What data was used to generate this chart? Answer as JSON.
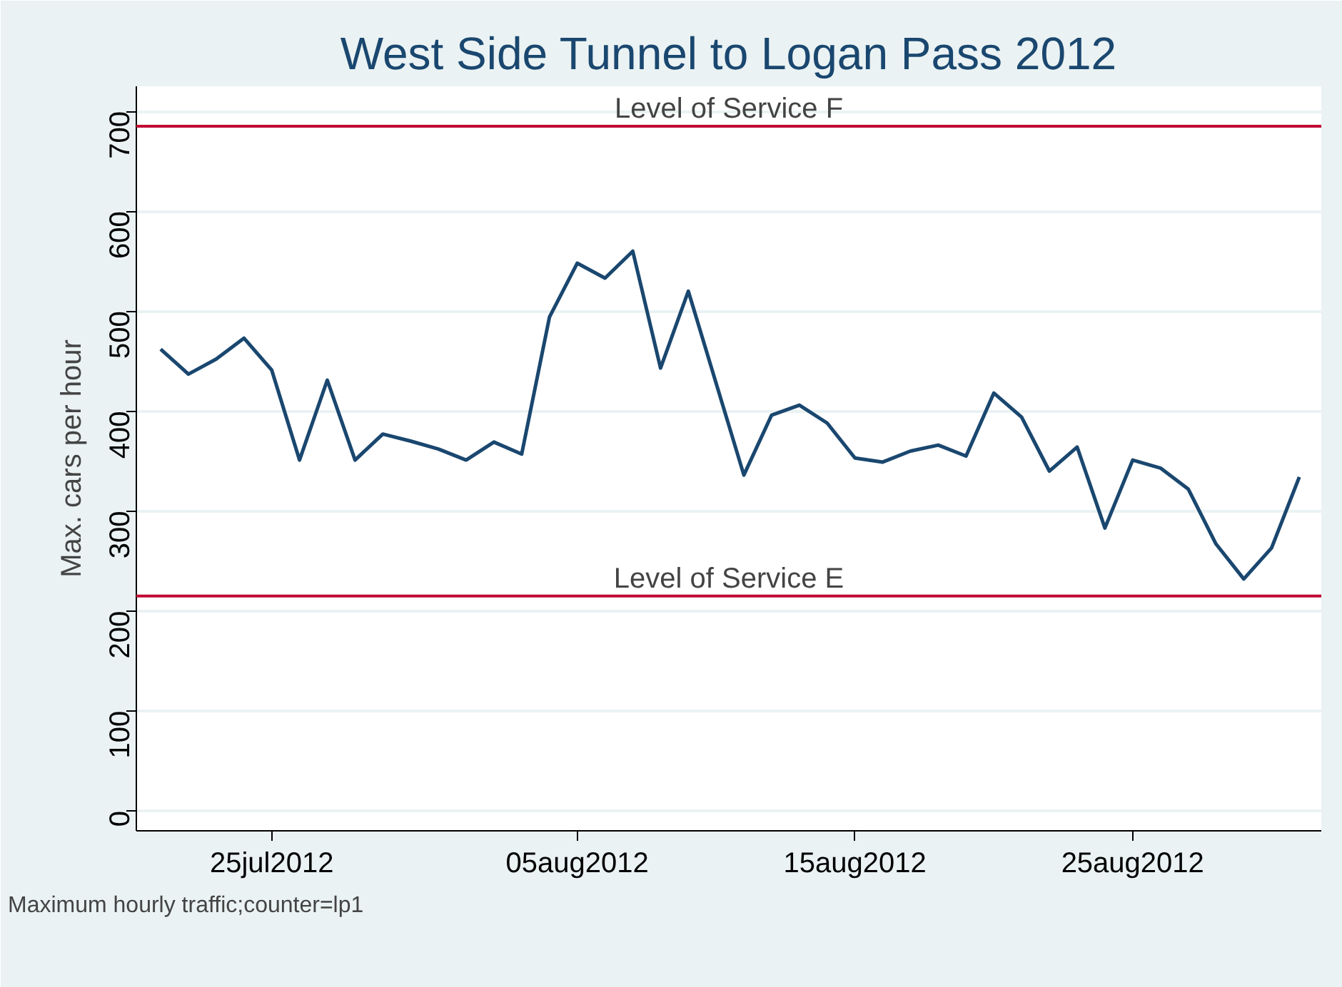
{
  "chart_data": {
    "type": "line",
    "title": "West Side Tunnel to Logan Pass 2012",
    "ylabel": "Max. cars per hour",
    "annotations": [
      "Maximum hourly traffic;counter=lp1"
    ],
    "x": [
      "2012-07-21",
      "2012-07-22",
      "2012-07-23",
      "2012-07-24",
      "2012-07-25",
      "2012-07-26",
      "2012-07-27",
      "2012-07-28",
      "2012-07-29",
      "2012-07-30",
      "2012-07-31",
      "2012-08-01",
      "2012-08-02",
      "2012-08-03",
      "2012-08-04",
      "2012-08-05",
      "2012-08-06",
      "2012-08-07",
      "2012-08-08",
      "2012-08-09",
      "2012-08-10",
      "2012-08-11",
      "2012-08-12",
      "2012-08-13",
      "2012-08-14",
      "2012-08-15",
      "2012-08-16",
      "2012-08-17",
      "2012-08-18",
      "2012-08-19",
      "2012-08-20",
      "2012-08-21",
      "2012-08-22",
      "2012-08-23",
      "2012-08-24",
      "2012-08-25",
      "2012-08-26",
      "2012-08-27",
      "2012-08-28",
      "2012-08-29",
      "2012-08-30",
      "2012-08-31"
    ],
    "series": [
      {
        "color": "#1a476f",
        "values": [
          462,
          437,
          452,
          473,
          441,
          351,
          431,
          351,
          377,
          370,
          362,
          351,
          369,
          357,
          494,
          548,
          533,
          560,
          443,
          520,
          428,
          336,
          396,
          406,
          388,
          353,
          349,
          360,
          366,
          355,
          418,
          394,
          340,
          364,
          283,
          351,
          343,
          322,
          267,
          232,
          263,
          334
        ]
      }
    ],
    "xlim": [
      "2012-07-20T03:00",
      "2012-08-31T19:00"
    ],
    "xticks": [
      {
        "value": "2012-07-25",
        "label": "25jul2012"
      },
      {
        "value": "2012-08-05",
        "label": "05aug2012"
      },
      {
        "value": "2012-08-15",
        "label": "15aug2012"
      },
      {
        "value": "2012-08-25",
        "label": "25aug2012"
      }
    ],
    "ylim": [
      -20,
      725
    ],
    "yticks": [
      0,
      100,
      200,
      300,
      400,
      500,
      600,
      700
    ],
    "ref_lines": [
      {
        "axis": "y",
        "value": 685,
        "label": "Level of Service F",
        "color": "#c10534"
      },
      {
        "axis": "y",
        "value": 215,
        "label": "Level of Service E",
        "color": "#c10534"
      }
    ],
    "grid": "y",
    "line_style": "solid"
  }
}
